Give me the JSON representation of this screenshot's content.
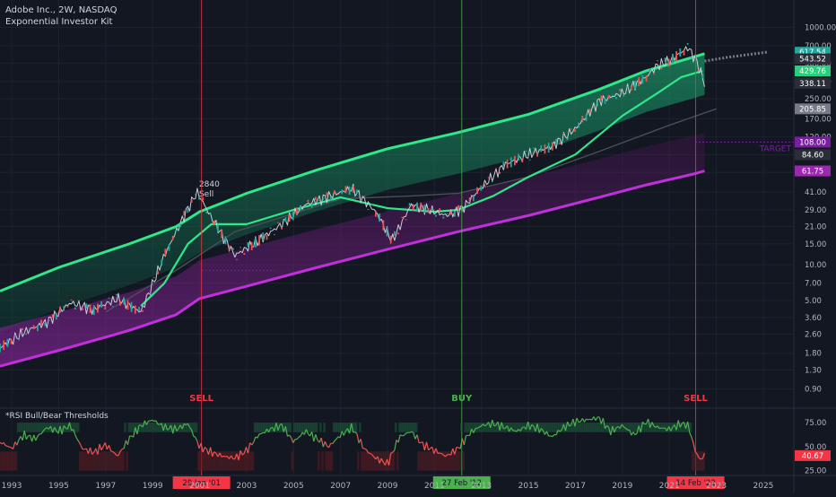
{
  "chart_data": [
    {
      "type": "line",
      "title": "Adobe Inc., 2W, NASDAQ",
      "subtitle": "Exponential Investor Kit",
      "y_scale": "log",
      "x_range": [
        1992.5,
        2026.3
      ],
      "ylim": [
        0.62,
        1700
      ],
      "x_ticks": [
        "1993",
        "1995",
        "1997",
        "1999",
        "2001",
        "2003",
        "2005",
        "2007",
        "2009",
        "2011",
        "2013",
        "2015",
        "2017",
        "2019",
        "2021",
        "2023",
        "2025"
      ],
      "y_ticks": [
        "1000.00",
        "700.00",
        "500.00",
        "350.00",
        "250.00",
        "170.00",
        "120.00",
        "84.60",
        "60.00",
        "41.00",
        "29.00",
        "21.00",
        "15.00",
        "10.00",
        "7.00",
        "5.00",
        "3.60",
        "2.60",
        "1.80",
        "1.30",
        "0.90"
      ],
      "price_tags": [
        {
          "value": "617.54",
          "price": 617.54,
          "color": "#26a69a"
        },
        {
          "value": "543.52",
          "price": 543.52,
          "color": "#2a2e39"
        },
        {
          "value": "429.76",
          "price": 429.76,
          "color": "#26d07c"
        },
        {
          "value": "338.11",
          "price": 338.11,
          "color": "#2a2e39"
        },
        {
          "value": "205.85",
          "price": 205.85,
          "color": "#787b86"
        },
        {
          "value": "108.00",
          "price": 108.0,
          "color": "#7b1fa2"
        },
        {
          "value": "84.60",
          "price": 84.6,
          "color": "#2a2e39"
        },
        {
          "value": "61.75",
          "price": 61.75,
          "color": "#9c27b0"
        }
      ],
      "target_label": "TARGET",
      "target_price": 108.0,
      "signals": [
        {
          "label": "SELL",
          "date": "29 Jan '01",
          "x": 2001.08,
          "color": "#f23645"
        },
        {
          "label": "BUY",
          "date": "27 Feb '12",
          "x": 2012.16,
          "color": "#4caf50"
        },
        {
          "label": "SELL",
          "date": "14 Feb '22",
          "x": 2022.12,
          "color": "#f23645"
        }
      ],
      "sell_annotation": {
        "value": "2840",
        "label": "Sell",
        "x": 2000.9,
        "price": 41.0
      },
      "series": [
        {
          "name": "",
          "values": [
            [
              1992.5,
              2.0
            ],
            [
              1993.5,
              2.7
            ],
            [
              1994.5,
              3.3
            ],
            [
              1995.5,
              4.8
            ],
            [
              1996.5,
              4.2
            ],
            [
              1997.5,
              5.2
            ],
            [
              1998.5,
              4.0
            ],
            [
              1999.5,
              12.0
            ],
            [
              2000.5,
              30.0
            ],
            [
              2000.9,
              41.0
            ],
            [
              2001.5,
              25.0
            ],
            [
              2002.5,
              12.0
            ],
            [
              2003.5,
              16.0
            ],
            [
              2004.5,
              22.0
            ],
            [
              2005.5,
              32.0
            ],
            [
              2006.5,
              38.0
            ],
            [
              2007.5,
              44.0
            ],
            [
              2008.5,
              28.0
            ],
            [
              2009.2,
              16.0
            ],
            [
              2010.0,
              32.0
            ],
            [
              2010.8,
              29.0
            ],
            [
              2011.5,
              26.0
            ],
            [
              2012.2,
              30.0
            ],
            [
              2013.0,
              45.0
            ],
            [
              2014.0,
              70.0
            ],
            [
              2015.0,
              85.0
            ],
            [
              2016.0,
              100.0
            ],
            [
              2017.0,
              140.0
            ],
            [
              2018.0,
              240.0
            ],
            [
              2019.0,
              280.0
            ],
            [
              2020.0,
              380.0
            ],
            [
              2020.5,
              480.0
            ],
            [
              2021.0,
              520.0
            ],
            [
              2021.8,
              680.0
            ],
            [
              2022.2,
              500.0
            ],
            [
              2022.5,
              338.0
            ]
          ]
        },
        {
          "name": "",
          "values": [
            [
              1992.5,
              6.0
            ],
            [
              1995,
              9.5
            ],
            [
              1998,
              15.0
            ],
            [
              2000,
              21.0
            ],
            [
              2001,
              28.0
            ],
            [
              2003,
              40.0
            ],
            [
              2006,
              63.0
            ],
            [
              2009,
              95.0
            ],
            [
              2012,
              130.0
            ],
            [
              2015,
              185.0
            ],
            [
              2018,
              300.0
            ],
            [
              2020,
              430.0
            ],
            [
              2022,
              560.0
            ],
            [
              2022.5,
              600.0
            ]
          ]
        },
        {
          "name": "",
          "values": [
            [
              1992.5,
              1.4
            ],
            [
              1995,
              1.9
            ],
            [
              1998,
              2.8
            ],
            [
              2000,
              3.8
            ],
            [
              2001,
              5.2
            ],
            [
              2003,
              6.6
            ],
            [
              2006,
              9.5
            ],
            [
              2009,
              13.5
            ],
            [
              2012,
              19.0
            ],
            [
              2015,
              26.0
            ],
            [
              2018,
              37.0
            ],
            [
              2020,
              47.0
            ],
            [
              2022,
              58.0
            ],
            [
              2022.5,
              61.75
            ]
          ]
        },
        {
          "name": "",
          "values": [
            [
              1998.5,
              4.5
            ],
            [
              1999.5,
              7.0
            ],
            [
              2000.5,
              15.0
            ],
            [
              2001.5,
              22.0
            ],
            [
              2003,
              22.0
            ],
            [
              2005,
              29.0
            ],
            [
              2007,
              37.0
            ],
            [
              2009,
              30.0
            ],
            [
              2011,
              28.0
            ],
            [
              2012,
              29.0
            ],
            [
              2013.5,
              38.0
            ],
            [
              2015,
              55.0
            ],
            [
              2017,
              85.0
            ],
            [
              2019,
              180.0
            ],
            [
              2020.5,
              280.0
            ],
            [
              2021.5,
              380.0
            ],
            [
              2022.4,
              429.76
            ]
          ]
        },
        {
          "name": "",
          "values": [
            [
              1997,
              4.0
            ],
            [
              2000,
              9.0
            ],
            [
              2002.5,
              19.0
            ],
            [
              2005,
              27.0
            ],
            [
              2007,
              36.0
            ],
            [
              2010,
              38.0
            ],
            [
              2012,
              40.0
            ],
            [
              2015,
              55.0
            ],
            [
              2018,
              90.0
            ],
            [
              2021,
              150.0
            ],
            [
              2023,
              205.85
            ]
          ]
        }
      ]
    },
    {
      "type": "line",
      "title": "*RSI Bull/Bear Thresholds",
      "x_range": [
        1992.5,
        2026.3
      ],
      "ylim": [
        20,
        90
      ],
      "y_ticks": [
        "75.00",
        "50.00",
        "40.67",
        "25.00"
      ],
      "current_value": 40.67,
      "bull_threshold": 65,
      "bear_threshold": 45,
      "series": [
        {
          "name": "",
          "values": [
            [
              1992.5,
              55
            ],
            [
              1993,
              48
            ],
            [
              1993.5,
              62
            ],
            [
              1994,
              58
            ],
            [
              1994.5,
              70
            ],
            [
              1995,
              66
            ],
            [
              1995.5,
              72
            ],
            [
              1996,
              48
            ],
            [
              1996.5,
              44
            ],
            [
              1997,
              52
            ],
            [
              1997.5,
              40
            ],
            [
              1998,
              58
            ],
            [
              1998.5,
              72
            ],
            [
              1999,
              78
            ],
            [
              1999.5,
              70
            ],
            [
              2000,
              68
            ],
            [
              2000.5,
              74
            ],
            [
              2001,
              50
            ],
            [
              2001.5,
              44
            ],
            [
              2002,
              40
            ],
            [
              2002.5,
              38
            ],
            [
              2003,
              46
            ],
            [
              2003.5,
              62
            ],
            [
              2004,
              68
            ],
            [
              2004.5,
              72
            ],
            [
              2005,
              55
            ],
            [
              2005.5,
              66
            ],
            [
              2006,
              58
            ],
            [
              2006.5,
              50
            ],
            [
              2007,
              62
            ],
            [
              2007.5,
              70
            ],
            [
              2008,
              48
            ],
            [
              2008.5,
              38
            ],
            [
              2009,
              32
            ],
            [
              2009.5,
              60
            ],
            [
              2010,
              66
            ],
            [
              2010.5,
              52
            ],
            [
              2011,
              46
            ],
            [
              2011.5,
              40
            ],
            [
              2012,
              48
            ],
            [
              2012.5,
              64
            ],
            [
              2013,
              72
            ],
            [
              2013.5,
              74
            ],
            [
              2014,
              70
            ],
            [
              2014.5,
              66
            ],
            [
              2015,
              72
            ],
            [
              2015.5,
              68
            ],
            [
              2016,
              60
            ],
            [
              2016.5,
              70
            ],
            [
              2017,
              76
            ],
            [
              2017.5,
              78
            ],
            [
              2018,
              80
            ],
            [
              2018.5,
              66
            ],
            [
              2019,
              72
            ],
            [
              2019.5,
              62
            ],
            [
              2020,
              76
            ],
            [
              2020.5,
              70
            ],
            [
              2021,
              68
            ],
            [
              2021.5,
              74
            ],
            [
              2021.8,
              72
            ],
            [
              2022.1,
              46
            ],
            [
              2022.3,
              36
            ],
            [
              2022.5,
              40.67
            ]
          ]
        }
      ]
    }
  ]
}
